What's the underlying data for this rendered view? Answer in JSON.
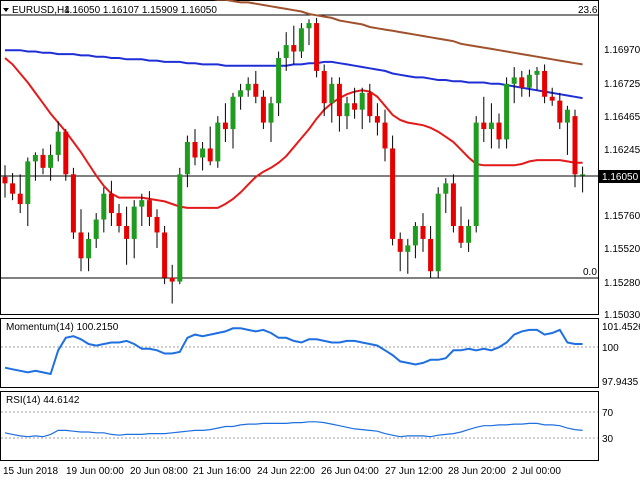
{
  "header": {
    "symbol": "EURUSD,H4",
    "ohlc": "1.16050 1.16107 1.15909 1.16050",
    "triangle_icon": "down-triangle-icon"
  },
  "chart_data": [
    {
      "type": "candlestick",
      "panel": "main",
      "right_axis_ticks": [
        "1.16970",
        "1.16725",
        "1.16465",
        "1.16245",
        "1.15760",
        "1.15520",
        "1.15280",
        "1.15030"
      ],
      "last_price_label": "1.16050",
      "top_scale_label": "23.6",
      "bottom_scale_label": "0.0",
      "ylim": [
        1.15,
        1.1736
      ],
      "colors": {
        "bull": "#1f9c1f",
        "bear": "#e60000",
        "wick": "#000000",
        "ma_fast": "#e41a1a",
        "ma_mid": "#1f2fd6",
        "ma_slow": "#a0522d"
      },
      "candles": [
        {
          "o": 1.1603,
          "h": 1.1612,
          "l": 1.1587,
          "c": 1.1598
        },
        {
          "o": 1.1598,
          "h": 1.1606,
          "l": 1.1585,
          "c": 1.159
        },
        {
          "o": 1.159,
          "h": 1.1605,
          "l": 1.1575,
          "c": 1.1582
        },
        {
          "o": 1.1582,
          "h": 1.1618,
          "l": 1.1565,
          "c": 1.1615
        },
        {
          "o": 1.1615,
          "h": 1.1622,
          "l": 1.16,
          "c": 1.162
        },
        {
          "o": 1.162,
          "h": 1.1625,
          "l": 1.1605,
          "c": 1.161
        },
        {
          "o": 1.161,
          "h": 1.1628,
          "l": 1.16,
          "c": 1.162
        },
        {
          "o": 1.162,
          "h": 1.1646,
          "l": 1.1615,
          "c": 1.1638
        },
        {
          "o": 1.1638,
          "h": 1.164,
          "l": 1.16,
          "c": 1.1605
        },
        {
          "o": 1.1605,
          "h": 1.161,
          "l": 1.1555,
          "c": 1.156
        },
        {
          "o": 1.156,
          "h": 1.1578,
          "l": 1.153,
          "c": 1.154
        },
        {
          "o": 1.154,
          "h": 1.156,
          "l": 1.153,
          "c": 1.1555
        },
        {
          "o": 1.1555,
          "h": 1.1575,
          "l": 1.1548,
          "c": 1.157
        },
        {
          "o": 1.157,
          "h": 1.1595,
          "l": 1.156,
          "c": 1.159
        },
        {
          "o": 1.159,
          "h": 1.16,
          "l": 1.1565,
          "c": 1.1575
        },
        {
          "o": 1.1575,
          "h": 1.1582,
          "l": 1.156,
          "c": 1.1565
        },
        {
          "o": 1.1565,
          "h": 1.158,
          "l": 1.1535,
          "c": 1.1555
        },
        {
          "o": 1.1555,
          "h": 1.1585,
          "l": 1.154,
          "c": 1.158
        },
        {
          "o": 1.158,
          "h": 1.159,
          "l": 1.1565,
          "c": 1.1585
        },
        {
          "o": 1.1585,
          "h": 1.1592,
          "l": 1.1565,
          "c": 1.1572
        },
        {
          "o": 1.1572,
          "h": 1.1578,
          "l": 1.1548,
          "c": 1.156
        },
        {
          "o": 1.156,
          "h": 1.1565,
          "l": 1.152,
          "c": 1.1525
        },
        {
          "o": 1.1525,
          "h": 1.1535,
          "l": 1.1505,
          "c": 1.1522
        },
        {
          "o": 1.1522,
          "h": 1.161,
          "l": 1.152,
          "c": 1.1605
        },
        {
          "o": 1.1605,
          "h": 1.1635,
          "l": 1.1595,
          "c": 1.163
        },
        {
          "o": 1.163,
          "h": 1.164,
          "l": 1.1612,
          "c": 1.1618
        },
        {
          "o": 1.1618,
          "h": 1.163,
          "l": 1.1608,
          "c": 1.1625
        },
        {
          "o": 1.1625,
          "h": 1.1642,
          "l": 1.1612,
          "c": 1.1615
        },
        {
          "o": 1.1615,
          "h": 1.165,
          "l": 1.161,
          "c": 1.1645
        },
        {
          "o": 1.1645,
          "h": 1.166,
          "l": 1.163,
          "c": 1.164
        },
        {
          "o": 1.164,
          "h": 1.1668,
          "l": 1.1625,
          "c": 1.1665
        },
        {
          "o": 1.1665,
          "h": 1.1675,
          "l": 1.1655,
          "c": 1.167
        },
        {
          "o": 1.167,
          "h": 1.168,
          "l": 1.1665,
          "c": 1.1675
        },
        {
          "o": 1.1675,
          "h": 1.1685,
          "l": 1.166,
          "c": 1.1665
        },
        {
          "o": 1.1665,
          "h": 1.167,
          "l": 1.164,
          "c": 1.1645
        },
        {
          "o": 1.1645,
          "h": 1.1665,
          "l": 1.163,
          "c": 1.166
        },
        {
          "o": 1.166,
          "h": 1.17,
          "l": 1.165,
          "c": 1.1695
        },
        {
          "o": 1.1695,
          "h": 1.1715,
          "l": 1.1685,
          "c": 1.1705
        },
        {
          "o": 1.1705,
          "h": 1.172,
          "l": 1.169,
          "c": 1.17
        },
        {
          "o": 1.17,
          "h": 1.1722,
          "l": 1.1695,
          "c": 1.1718
        },
        {
          "o": 1.1718,
          "h": 1.1725,
          "l": 1.1705,
          "c": 1.1722
        },
        {
          "o": 1.1722,
          "h": 1.1726,
          "l": 1.168,
          "c": 1.1685
        },
        {
          "o": 1.1685,
          "h": 1.169,
          "l": 1.165,
          "c": 1.166
        },
        {
          "o": 1.166,
          "h": 1.168,
          "l": 1.1645,
          "c": 1.1675
        },
        {
          "o": 1.1675,
          "h": 1.168,
          "l": 1.1638,
          "c": 1.165
        },
        {
          "o": 1.165,
          "h": 1.1665,
          "l": 1.164,
          "c": 1.166
        },
        {
          "o": 1.166,
          "h": 1.1672,
          "l": 1.1648,
          "c": 1.1655
        },
        {
          "o": 1.1655,
          "h": 1.1672,
          "l": 1.164,
          "c": 1.1668
        },
        {
          "o": 1.1668,
          "h": 1.1675,
          "l": 1.1645,
          "c": 1.165
        },
        {
          "o": 1.165,
          "h": 1.166,
          "l": 1.1635,
          "c": 1.1645
        },
        {
          "o": 1.1645,
          "h": 1.1655,
          "l": 1.1615,
          "c": 1.1625
        },
        {
          "o": 1.1625,
          "h": 1.1635,
          "l": 1.155,
          "c": 1.1555
        },
        {
          "o": 1.1555,
          "h": 1.156,
          "l": 1.153,
          "c": 1.1545
        },
        {
          "o": 1.1545,
          "h": 1.1555,
          "l": 1.1528,
          "c": 1.155
        },
        {
          "o": 1.155,
          "h": 1.1568,
          "l": 1.154,
          "c": 1.1565
        },
        {
          "o": 1.1565,
          "h": 1.1575,
          "l": 1.1545,
          "c": 1.1555
        },
        {
          "o": 1.1555,
          "h": 1.1565,
          "l": 1.1525,
          "c": 1.153
        },
        {
          "o": 1.153,
          "h": 1.1595,
          "l": 1.1525,
          "c": 1.159
        },
        {
          "o": 1.159,
          "h": 1.1602,
          "l": 1.1575,
          "c": 1.1598
        },
        {
          "o": 1.1598,
          "h": 1.1605,
          "l": 1.156,
          "c": 1.1565
        },
        {
          "o": 1.1565,
          "h": 1.158,
          "l": 1.1548,
          "c": 1.1552
        },
        {
          "o": 1.1552,
          "h": 1.157,
          "l": 1.1545,
          "c": 1.1565
        },
        {
          "o": 1.1565,
          "h": 1.165,
          "l": 1.156,
          "c": 1.1645
        },
        {
          "o": 1.1645,
          "h": 1.1665,
          "l": 1.163,
          "c": 1.164
        },
        {
          "o": 1.164,
          "h": 1.166,
          "l": 1.1625,
          "c": 1.1645
        },
        {
          "o": 1.1645,
          "h": 1.1652,
          "l": 1.1625,
          "c": 1.1632
        },
        {
          "o": 1.1632,
          "h": 1.168,
          "l": 1.1625,
          "c": 1.1675
        },
        {
          "o": 1.1675,
          "h": 1.1688,
          "l": 1.166,
          "c": 1.168
        },
        {
          "o": 1.168,
          "h": 1.1685,
          "l": 1.1665,
          "c": 1.1672
        },
        {
          "o": 1.1672,
          "h": 1.1686,
          "l": 1.1665,
          "c": 1.1682
        },
        {
          "o": 1.1682,
          "h": 1.1688,
          "l": 1.167,
          "c": 1.1685
        },
        {
          "o": 1.1685,
          "h": 1.169,
          "l": 1.166,
          "c": 1.1665
        },
        {
          "o": 1.1665,
          "h": 1.1672,
          "l": 1.1658,
          "c": 1.1662
        },
        {
          "o": 1.1662,
          "h": 1.1668,
          "l": 1.164,
          "c": 1.1645
        },
        {
          "o": 1.1645,
          "h": 1.1658,
          "l": 1.162,
          "c": 1.1655
        },
        {
          "o": 1.165,
          "h": 1.1655,
          "l": 1.1595,
          "c": 1.1605
        },
        {
          "o": 1.1605,
          "h": 1.1611,
          "l": 1.1591,
          "c": 1.1605
        }
      ],
      "ma_fast": [
        1.1695,
        1.169,
        1.1683,
        1.1676,
        1.1668,
        1.166,
        1.1652,
        1.1645,
        1.1638,
        1.163,
        1.1622,
        1.1613,
        1.1604,
        1.1596,
        1.159,
        1.1587,
        1.1587,
        1.1587,
        1.1587,
        1.1586,
        1.1585,
        1.1584,
        1.1582,
        1.158,
        1.1579,
        1.1579,
        1.1579,
        1.1579,
        1.1579,
        1.1582,
        1.1586,
        1.1591,
        1.1597,
        1.1603,
        1.1607,
        1.161,
        1.1614,
        1.1619,
        1.1626,
        1.1633,
        1.164,
        1.1648,
        1.1655,
        1.166,
        1.1664,
        1.1667,
        1.1669,
        1.167,
        1.1669,
        1.1665,
        1.1658,
        1.1651,
        1.1647,
        1.1645,
        1.1644,
        1.1643,
        1.1641,
        1.1638,
        1.1634,
        1.163,
        1.1624,
        1.1618,
        1.1613,
        1.1612,
        1.1612,
        1.1612,
        1.1612,
        1.1612,
        1.1613,
        1.1615,
        1.1616,
        1.1616,
        1.1616,
        1.1616,
        1.1615,
        1.1614,
        1.1614
      ],
      "ma_mid": [
        1.1701,
        1.1701,
        1.1701,
        1.17,
        1.17,
        1.1699,
        1.1699,
        1.1698,
        1.1698,
        1.1698,
        1.1697,
        1.1697,
        1.1696,
        1.1696,
        1.1695,
        1.1695,
        1.1694,
        1.1694,
        1.1694,
        1.1693,
        1.1693,
        1.1692,
        1.1692,
        1.1692,
        1.1691,
        1.1691,
        1.169,
        1.169,
        1.169,
        1.1689,
        1.1689,
        1.1689,
        1.1689,
        1.1689,
        1.1689,
        1.1689,
        1.1689,
        1.1689,
        1.169,
        1.169,
        1.1691,
        1.1691,
        1.1692,
        1.1692,
        1.1691,
        1.169,
        1.1689,
        1.1688,
        1.1687,
        1.1686,
        1.1685,
        1.1683,
        1.1682,
        1.1681,
        1.168,
        1.168,
        1.1679,
        1.1678,
        1.1678,
        1.1677,
        1.1677,
        1.1676,
        1.1676,
        1.1676,
        1.1675,
        1.1675,
        1.1674,
        1.1673,
        1.1672,
        1.1671,
        1.167,
        1.1669,
        1.1668,
        1.1667,
        1.1666,
        1.1665,
        1.1664
      ],
      "ma_slow": [
        1.175,
        1.175,
        1.175,
        1.1749,
        1.1749,
        1.1749,
        1.1748,
        1.1748,
        1.1748,
        1.1747,
        1.1747,
        1.1747,
        1.1746,
        1.1746,
        1.1746,
        1.1745,
        1.1745,
        1.1745,
        1.1744,
        1.1744,
        1.1744,
        1.1743,
        1.1743,
        1.1743,
        1.1742,
        1.1742,
        1.1741,
        1.1741,
        1.174,
        1.174,
        1.1739,
        1.1738,
        1.1738,
        1.1737,
        1.1736,
        1.1735,
        1.1734,
        1.1733,
        1.1732,
        1.1731,
        1.1729,
        1.1728,
        1.1727,
        1.1726,
        1.1724,
        1.1723,
        1.1722,
        1.1721,
        1.1719,
        1.1718,
        1.1717,
        1.1716,
        1.1715,
        1.1714,
        1.1713,
        1.1712,
        1.1711,
        1.171,
        1.1709,
        1.1708,
        1.1706,
        1.1705,
        1.1704,
        1.1703,
        1.1702,
        1.1701,
        1.17,
        1.1699,
        1.1698,
        1.1697,
        1.1696,
        1.1695,
        1.1694,
        1.1693,
        1.1692,
        1.1691,
        1.169
      ]
    },
    {
      "type": "line",
      "panel": "momentum",
      "title": "Momentum(14) 100.2150",
      "ticks": [
        "101.4526",
        "100",
        "97.9435"
      ],
      "reference_level": 100,
      "ylim": [
        97.6,
        101.6
      ],
      "color": "#1e6fe0",
      "values": [
        98.7,
        98.6,
        98.5,
        98.4,
        98.5,
        98.4,
        98.3,
        99.8,
        100.6,
        100.7,
        100.5,
        100.2,
        100.1,
        100.2,
        100.3,
        100.3,
        100.4,
        100.2,
        99.9,
        99.9,
        99.8,
        99.6,
        99.6,
        99.7,
        100.6,
        100.8,
        100.7,
        100.8,
        100.9,
        101.0,
        101.2,
        101.2,
        101.1,
        101.0,
        101.1,
        100.9,
        100.6,
        100.6,
        100.4,
        100.3,
        100.5,
        100.5,
        100.4,
        100.3,
        100.3,
        100.4,
        100.4,
        100.3,
        100.2,
        100.1,
        99.8,
        99.5,
        99.1,
        99.0,
        98.9,
        99.0,
        99.2,
        99.2,
        99.3,
        99.8,
        99.8,
        99.9,
        99.8,
        99.9,
        99.8,
        100.0,
        100.3,
        100.8,
        101.0,
        101.1,
        101.1,
        100.8,
        100.9,
        101.1,
        100.3,
        100.2,
        100.2
      ]
    },
    {
      "type": "line",
      "panel": "rsi",
      "title": "RSI(14) 44.6142",
      "ticks": [
        "70",
        "30"
      ],
      "levels": [
        70,
        30
      ],
      "ylim": [
        10,
        90
      ],
      "color": "#1e6fe0",
      "values": [
        42,
        40,
        38,
        37,
        38,
        37,
        40,
        45,
        45,
        44,
        43,
        43,
        42,
        42,
        40,
        39,
        40,
        40,
        40,
        41,
        41,
        41,
        42,
        43,
        44,
        45,
        45,
        46,
        48,
        50,
        50,
        52,
        53,
        53,
        54,
        54,
        54,
        54,
        55,
        55,
        56,
        56,
        55,
        53,
        51,
        49,
        47,
        46,
        45,
        44,
        41,
        39,
        37,
        38,
        38,
        38,
        37,
        39,
        40,
        41,
        43,
        46,
        49,
        51,
        51,
        52,
        52,
        53,
        53,
        54,
        54,
        52,
        52,
        51,
        48,
        46,
        45
      ]
    },
    {
      "type": "axis",
      "panel": "time",
      "time_labels": [
        "15 Jun 2018",
        "19 Jun 00:00",
        "20 Jun 08:00",
        "21 Jun 16:00",
        "24 Jun 22:00",
        "26 Jun 04:00",
        "27 Jun 12:00",
        "28 Jun 20:00",
        "2 Jul 00:00"
      ]
    }
  ]
}
